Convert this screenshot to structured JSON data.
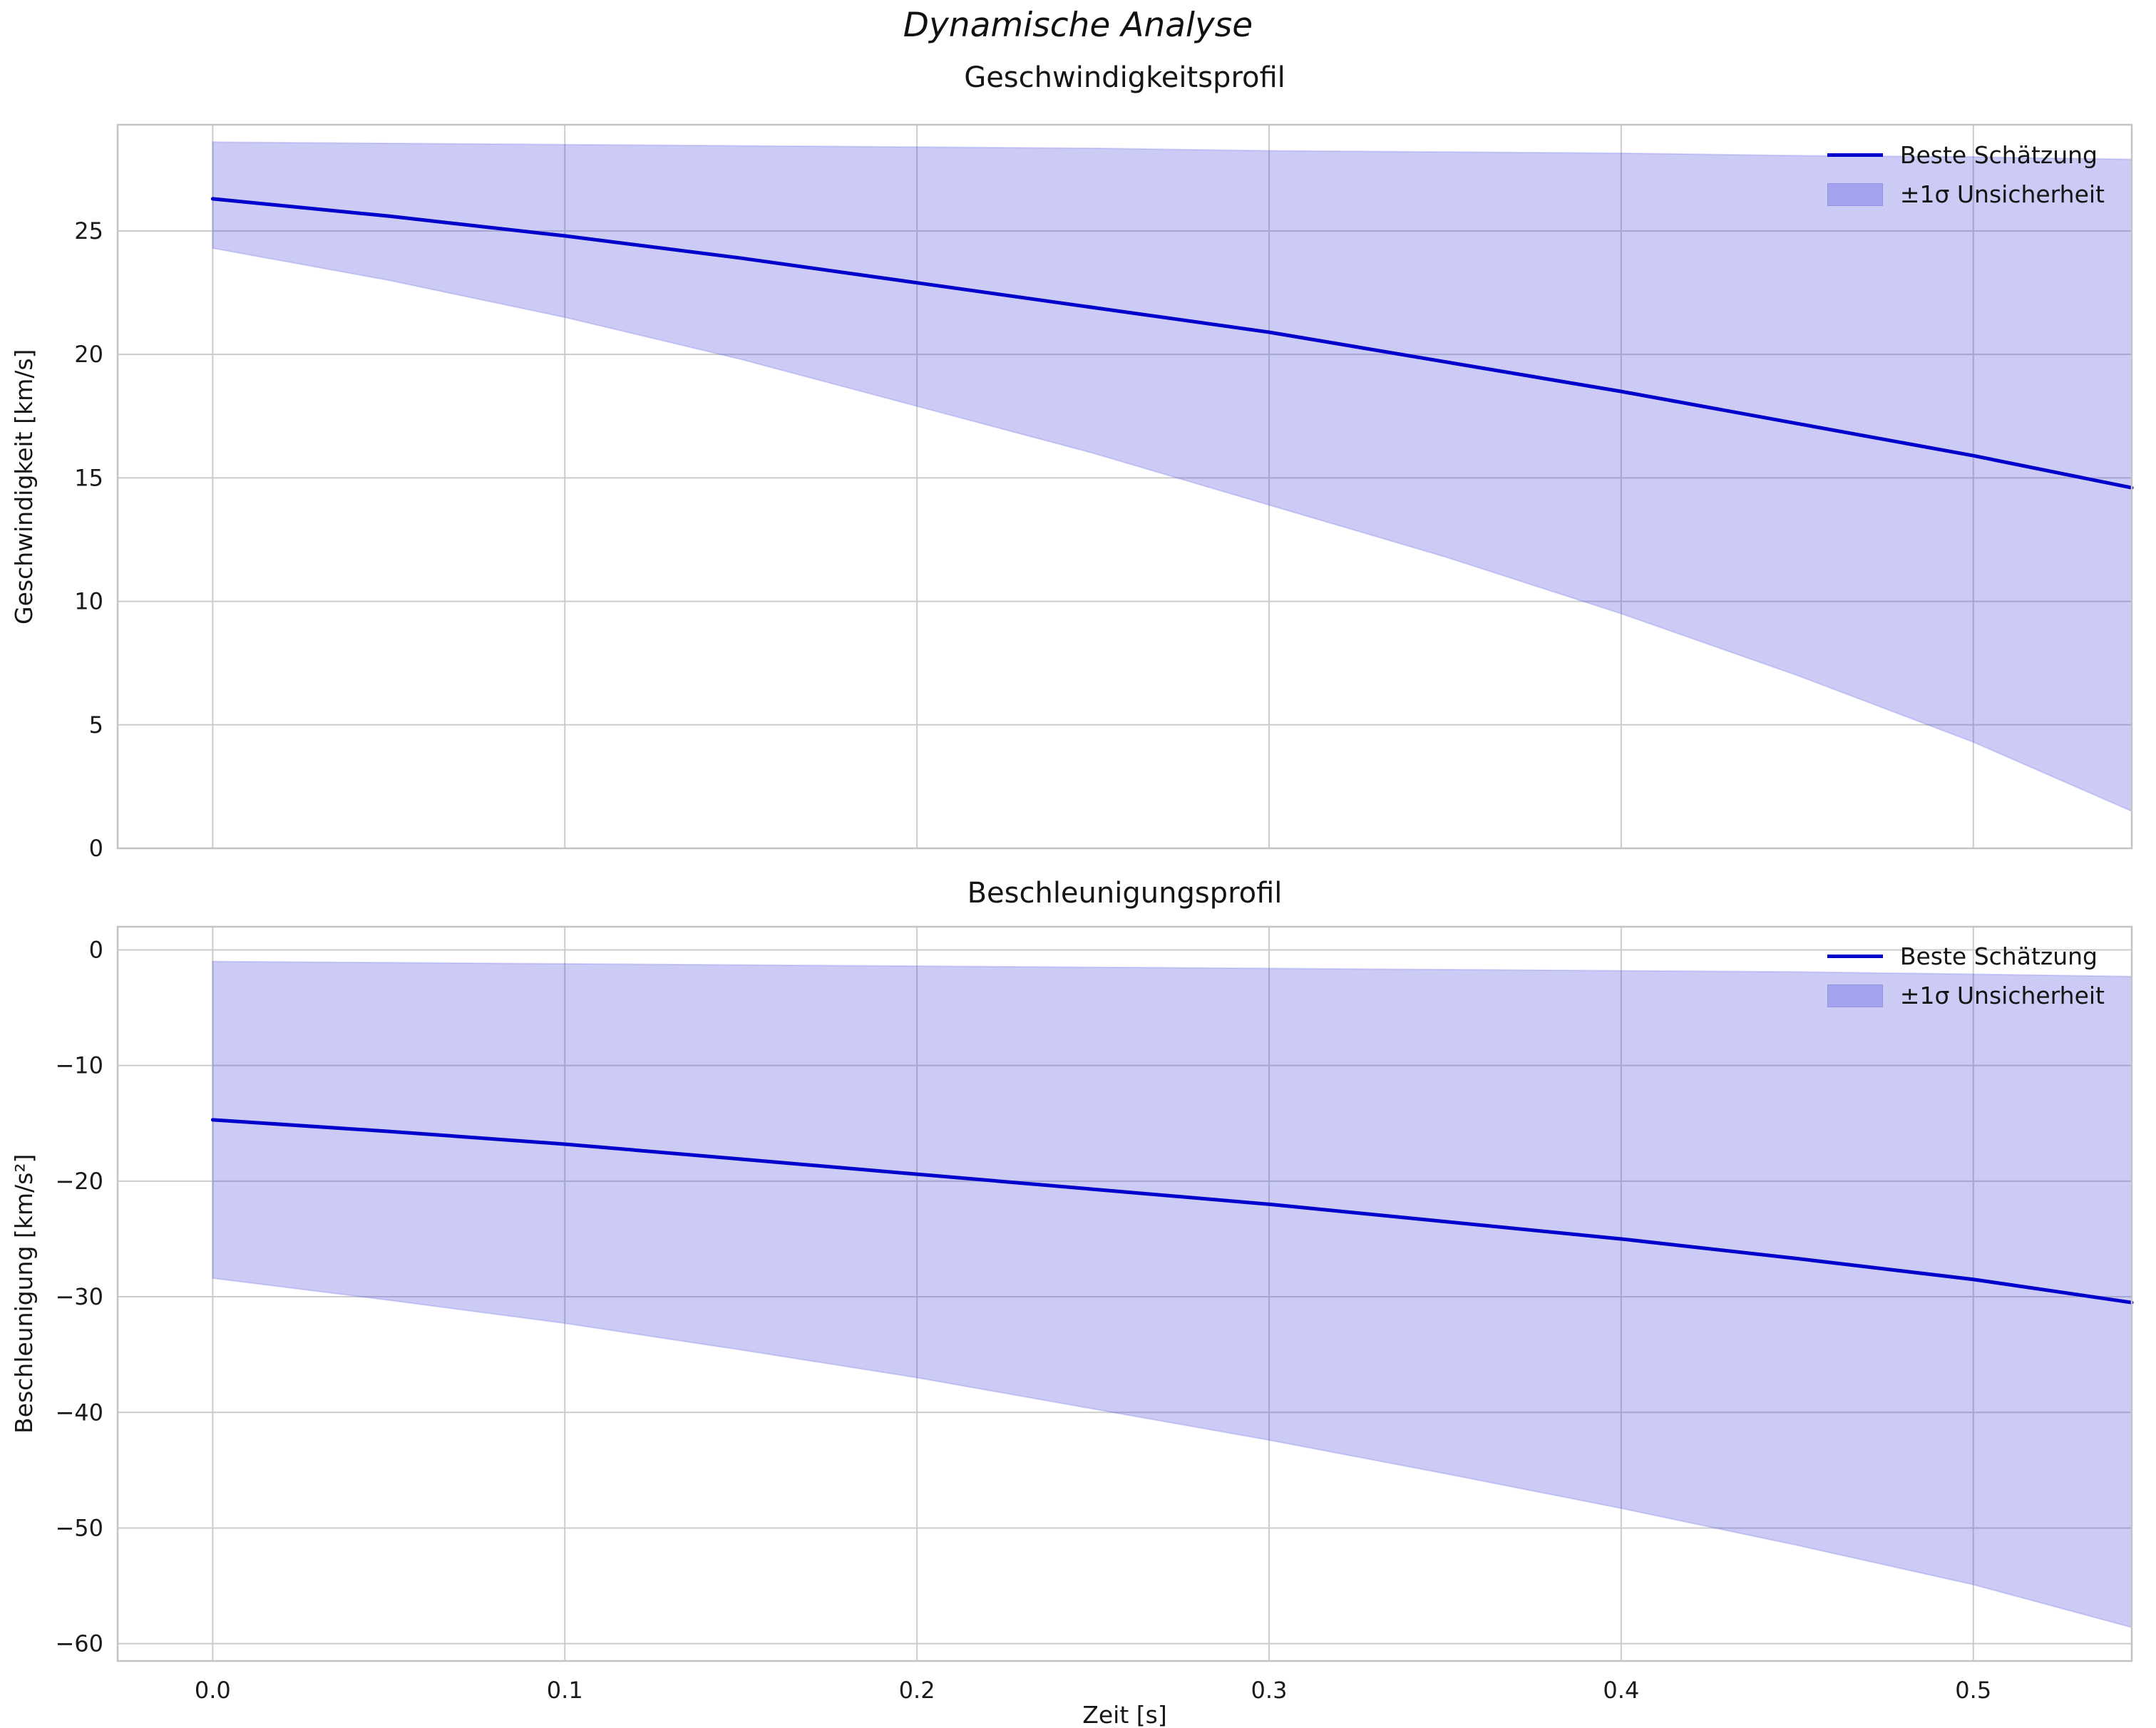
{
  "suptitle": "Dynamische Analyse",
  "colors": {
    "line": "#0000cc",
    "band_fill": "#4444e0",
    "band_fill_opacity": 0.28,
    "legend_patch": "#a3a3ef",
    "grid": "#cccccc",
    "spine": "#c4c4c4",
    "text": "#1a1a1a"
  },
  "chart_data": [
    {
      "type": "line",
      "title": "Geschwindigkeitsprofil",
      "ylabel": "Geschwindigkeit [km/s]",
      "xlabel": "",
      "legend": [
        "Beste Schätzung",
        "±1σ Unsicherheit"
      ],
      "legend_position": "upper right",
      "grid": true,
      "x": [
        0,
        0.05,
        0.1,
        0.15,
        0.2,
        0.25,
        0.3,
        0.35,
        0.4,
        0.45,
        0.5,
        0.545
      ],
      "series": [
        {
          "name": "Beste Schätzung",
          "values": [
            26.3,
            25.6,
            24.8,
            23.9,
            22.9,
            21.9,
            20.9,
            19.7,
            18.5,
            17.2,
            15.9,
            14.6
          ]
        },
        {
          "name": "+1σ",
          "values": [
            28.6,
            28.55,
            28.5,
            28.45,
            28.4,
            28.35,
            28.25,
            28.2,
            28.15,
            28.05,
            28.0,
            27.9
          ]
        },
        {
          "name": "-1σ",
          "values": [
            24.3,
            23.0,
            21.5,
            19.8,
            17.9,
            16.0,
            13.9,
            11.8,
            9.5,
            7.0,
            4.3,
            1.5
          ]
        }
      ],
      "xlim": [
        -0.027,
        0.545
      ],
      "ylim": [
        0,
        29.3
      ],
      "xticks": [
        0.0,
        0.1,
        0.2,
        0.3,
        0.4,
        0.5
      ],
      "yticks": [
        0,
        5,
        10,
        15,
        20,
        25
      ],
      "show_xticklabels": false
    },
    {
      "type": "line",
      "title": "Beschleunigungsprofil",
      "ylabel": "Beschleunigung [km/s²]",
      "xlabel": "Zeit [s]",
      "legend": [
        "Beste Schätzung",
        "±1σ Unsicherheit"
      ],
      "legend_position": "upper right",
      "grid": true,
      "x": [
        0,
        0.05,
        0.1,
        0.15,
        0.2,
        0.25,
        0.3,
        0.35,
        0.4,
        0.45,
        0.5,
        0.545
      ],
      "series": [
        {
          "name": "Beste Schätzung",
          "values": [
            -14.7,
            -15.7,
            -16.8,
            -18.1,
            -19.4,
            -20.7,
            -22.0,
            -23.5,
            -25.0,
            -26.7,
            -28.5,
            -30.5
          ]
        },
        {
          "name": "+1σ",
          "values": [
            -1.0,
            -1.1,
            -1.2,
            -1.3,
            -1.4,
            -1.5,
            -1.6,
            -1.7,
            -1.8,
            -1.9,
            -2.1,
            -2.3
          ]
        },
        {
          "name": "-1σ",
          "values": [
            -28.4,
            -30.3,
            -32.3,
            -34.6,
            -37.0,
            -39.7,
            -42.4,
            -45.3,
            -48.3,
            -51.5,
            -54.9,
            -58.6
          ]
        }
      ],
      "xlim": [
        -0.027,
        0.545
      ],
      "ylim": [
        -61.5,
        2
      ],
      "xticks": [
        0.0,
        0.1,
        0.2,
        0.3,
        0.4,
        0.5
      ],
      "yticks": [
        0,
        -10,
        -20,
        -30,
        -40,
        -50,
        -60
      ],
      "show_xticklabels": true
    }
  ]
}
